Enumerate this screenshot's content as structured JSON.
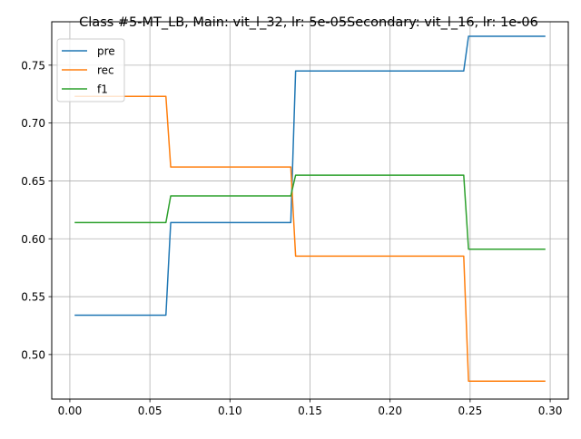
{
  "chart_data": {
    "type": "line",
    "title": "Class #5-MT_LB, Main: vit_l_32, lr: 5e-05Secondary: vit_l_16, lr: 1e-06",
    "xlabel": "",
    "ylabel": "",
    "xlim": [
      -0.0113,
      0.3113
    ],
    "ylim": [
      0.4615,
      0.7875
    ],
    "grid": true,
    "legend_position": "top-left",
    "x_ticks": [
      0.0,
      0.05,
      0.1,
      0.15,
      0.2,
      0.25,
      0.3
    ],
    "x_tick_labels": [
      "0.00",
      "0.05",
      "0.10",
      "0.15",
      "0.20",
      "0.25",
      "0.30"
    ],
    "y_ticks": [
      0.5,
      0.55,
      0.6,
      0.65,
      0.7,
      0.75
    ],
    "y_tick_labels": [
      "0.50",
      "0.55",
      "0.60",
      "0.65",
      "0.70",
      "0.75"
    ],
    "series": [
      {
        "name": "pre",
        "color": "#1f77b4",
        "points": [
          [
            0.003,
            0.534
          ],
          [
            0.06,
            0.534
          ],
          [
            0.063,
            0.614
          ],
          [
            0.138,
            0.614
          ],
          [
            0.141,
            0.745
          ],
          [
            0.246,
            0.745
          ],
          [
            0.249,
            0.775
          ],
          [
            0.297,
            0.775
          ]
        ]
      },
      {
        "name": "rec",
        "color": "#ff7f0e",
        "points": [
          [
            0.003,
            0.723
          ],
          [
            0.06,
            0.723
          ],
          [
            0.063,
            0.662
          ],
          [
            0.138,
            0.662
          ],
          [
            0.141,
            0.585
          ],
          [
            0.246,
            0.585
          ],
          [
            0.249,
            0.477
          ],
          [
            0.297,
            0.477
          ]
        ]
      },
      {
        "name": "f1",
        "color": "#2ca02c",
        "points": [
          [
            0.003,
            0.614
          ],
          [
            0.06,
            0.614
          ],
          [
            0.063,
            0.637
          ],
          [
            0.138,
            0.637
          ],
          [
            0.141,
            0.655
          ],
          [
            0.246,
            0.655
          ],
          [
            0.249,
            0.591
          ],
          [
            0.297,
            0.591
          ]
        ]
      }
    ]
  }
}
